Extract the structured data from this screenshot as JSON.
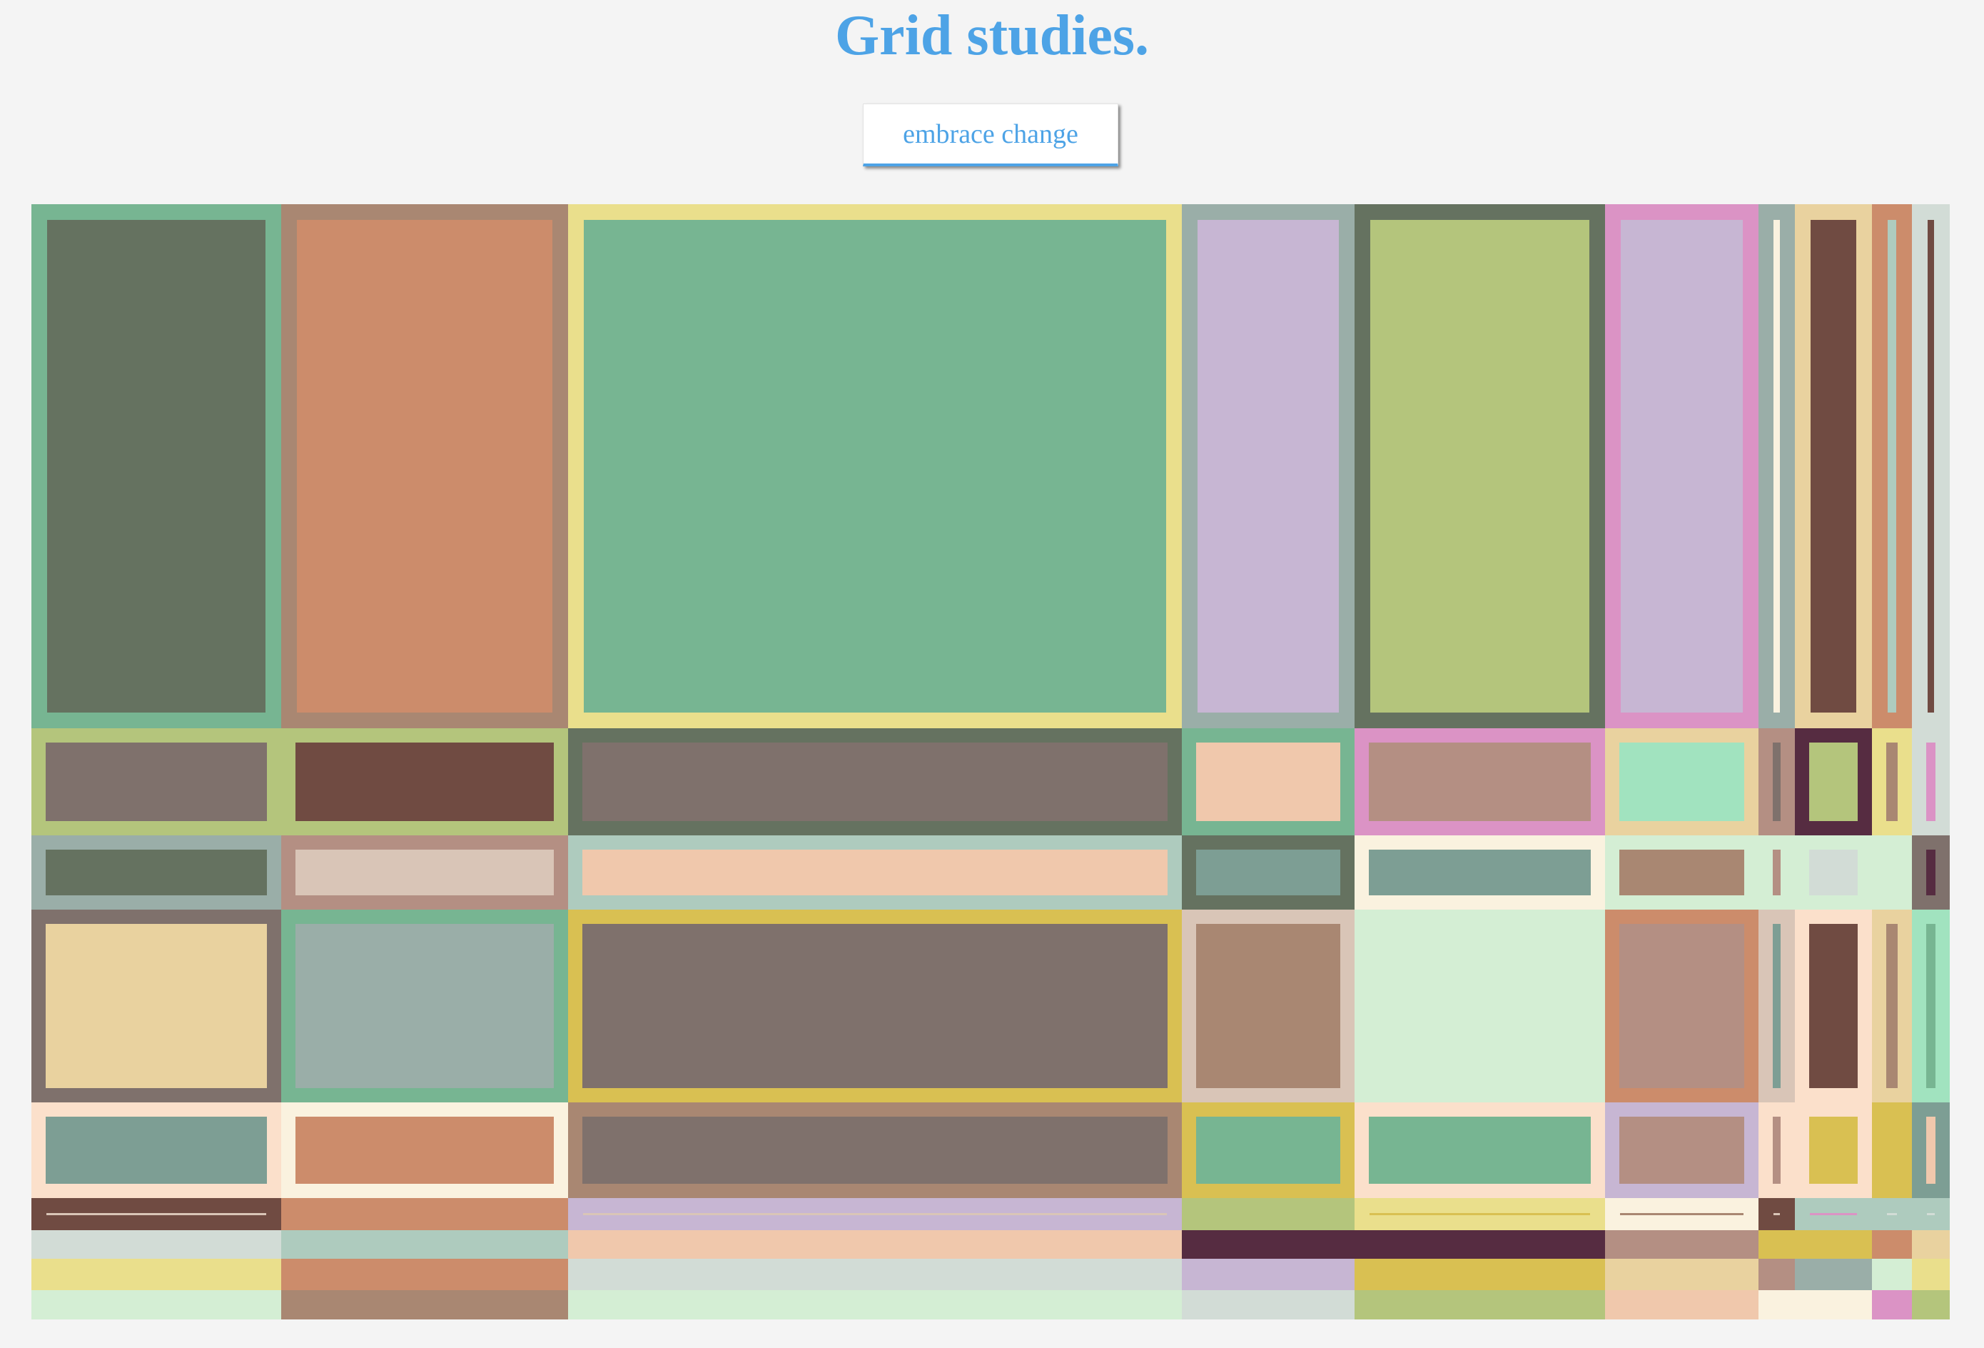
{
  "header": {
    "title": "Grid studies.",
    "button_label": "embrace change"
  },
  "colors": {
    "background": "#f4f4f4",
    "accent": "#4da3e6"
  },
  "palette": {
    "A": "#77b592",
    "B": "#657260",
    "C": "#a98772",
    "D": "#cc8c6b",
    "E": "#eadf8c",
    "F": "#9aaea8",
    "G": "#c7b6d3",
    "H": "#b4c57c",
    "I": "#db93c5",
    "J": "#e9d29f",
    "K": "#704b42",
    "L": "#d2dcd6",
    "M": "#7f716c",
    "N": "#f0c8ac",
    "O": "#a4d8c4",
    "P": "#a1e3bf",
    "Q": "#562c41",
    "R": "#b48f83",
    "S": "#d9c5b7",
    "T": "#aecbbe",
    "U": "#faf2df",
    "V": "#7d9e94",
    "W": "#d4eed4",
    "X": "#d9c052",
    "Y": "#fbe0cb",
    "Z": "#92deb5"
  },
  "grid": {
    "rows": [
      [
        "AB",
        "CD",
        "EA",
        "FG",
        "BH",
        "IG",
        "FU",
        "JK",
        "DT",
        "LK"
      ],
      [
        "HM",
        "HK",
        "BM",
        "AN",
        "IR",
        "JP",
        "RM",
        "QH",
        "EC",
        "LI"
      ],
      [
        "FB",
        "RS",
        "TN",
        "BV",
        "UV",
        "WC",
        "WR",
        "WL",
        "WW",
        "MQ"
      ],
      [
        "MJ",
        "AF",
        "XM",
        "SC",
        "WW",
        "DR",
        "SV",
        "YK",
        "JC",
        "PA"
      ],
      [
        "YV",
        "UD",
        "CM",
        "XA",
        "YA",
        "GR",
        "YR",
        "YX",
        "XX",
        "VN"
      ],
      [
        "KS",
        "DD",
        "GS",
        "HH",
        "EX",
        "UC",
        "KS",
        "TI",
        "TL",
        "TL"
      ],
      [
        "LL",
        "TT",
        "NN",
        "QQ",
        "QQ",
        "RR",
        "XX",
        "XX",
        "DD",
        "JJ"
      ],
      [
        "EE",
        "DD",
        "LL",
        "GG",
        "XX",
        "JJ",
        "RR",
        "FF",
        "WW",
        "EE"
      ],
      [
        "WW",
        "CC",
        "WW",
        "LL",
        "HH",
        "NN",
        "UU",
        "UU",
        "II",
        "HH"
      ]
    ]
  }
}
